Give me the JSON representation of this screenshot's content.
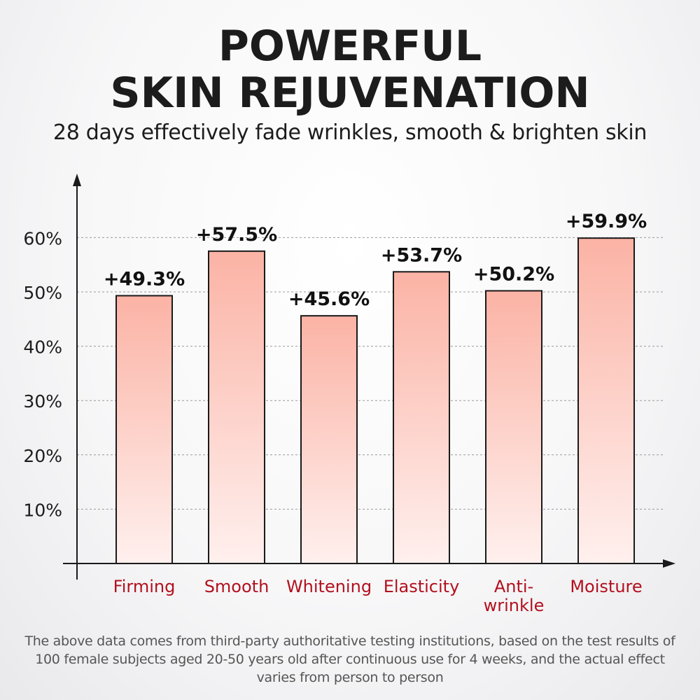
{
  "header": {
    "title_line1": "POWERFUL",
    "title_line2": "SKIN REJUVENATION",
    "subtitle": "28 days effectively fade wrinkles, smooth & brighten skin"
  },
  "chart_data": {
    "type": "bar",
    "categories": [
      "Firming",
      "Smooth",
      "Whitening",
      "Elasticity",
      "Anti-\nwrinkle",
      "Moisture"
    ],
    "values": [
      49.3,
      57.5,
      45.6,
      53.7,
      50.2,
      59.9
    ],
    "data_labels": [
      "+49.3%",
      "+57.5%",
      "+45.6%",
      "+53.7%",
      "+50.2%",
      "+59.9%"
    ],
    "yticks": [
      10,
      20,
      30,
      40,
      50,
      60
    ],
    "ytick_labels": [
      "10%",
      "20%",
      "30%",
      "40%",
      "50%",
      "60%"
    ],
    "ylim": [
      0,
      60
    ],
    "grid": true,
    "bar_color_top": "#fbb3a5",
    "bar_color_bottom": "#fff0ee",
    "category_color": "#b3101e"
  },
  "footnote": "The above data comes from third-party authoritative testing institutions, based on the test results of 100 female subjects aged 20-50 years old after continuous use for 4 weeks, and the actual effect varies from person to person"
}
